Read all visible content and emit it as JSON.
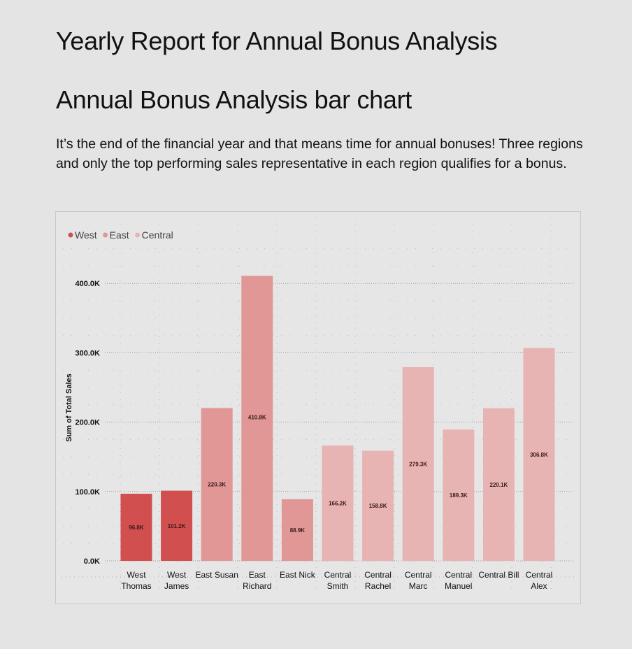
{
  "header": {
    "title": "Yearly Report for Annual Bonus Analysis",
    "chart_heading": "Annual Bonus Analysis bar chart",
    "intro": "It’s the end of the financial year and that means time for annual bonuses! Three regions and only the top performing sales representative in each region qualifies for a bonus."
  },
  "chart_data": {
    "type": "bar",
    "categories": [
      [
        "West",
        "Thomas"
      ],
      [
        "West",
        "James"
      ],
      [
        "East Susan"
      ],
      [
        "East",
        "Richard"
      ],
      [
        "East Nick"
      ],
      [
        "Central",
        "Smith"
      ],
      [
        "Central",
        "Rachel"
      ],
      [
        "Central",
        "Marc"
      ],
      [
        "Central",
        "Manuel"
      ],
      [
        "Central Bill"
      ],
      [
        "Central",
        "Alex"
      ]
    ],
    "values": [
      96.8,
      101.2,
      220.3,
      410.8,
      88.9,
      166.2,
      158.8,
      279.3,
      189.3,
      220.1,
      306.8
    ],
    "data_labels": [
      "96.8K",
      "101.2K",
      "220.3K",
      "410.8K",
      "88.9K",
      "166.2K",
      "158.8K",
      "279.3K",
      "189.3K",
      "220.1K",
      "306.8K"
    ],
    "groups": [
      "West",
      "West",
      "East",
      "East",
      "East",
      "Central",
      "Central",
      "Central",
      "Central",
      "Central",
      "Central"
    ],
    "legend": {
      "position": "top-left",
      "entries": [
        {
          "name": "West",
          "color": "#d24f4f"
        },
        {
          "name": "East",
          "color": "#e09796"
        },
        {
          "name": "Central",
          "color": "#e8b3b3"
        }
      ]
    },
    "ylabel": "Sum of Total Sales",
    "xlabel": "",
    "ylim": [
      0,
      450
    ],
    "yticks": [
      0,
      100,
      200,
      300,
      400
    ],
    "ytick_labels": [
      "0.0K",
      "100.0K",
      "200.0K",
      "300.0K",
      "400.0K"
    ],
    "grid": true
  }
}
